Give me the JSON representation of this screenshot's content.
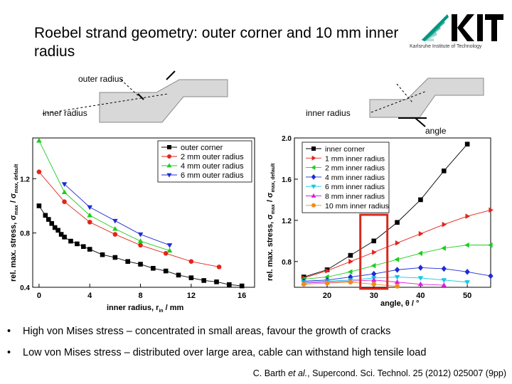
{
  "slide": {
    "title": "Roebel strand geometry: outer corner and 10 mm inner radius",
    "logo": {
      "text": "KIT",
      "subtitle": "Karlsruhe Institute of Technology",
      "color": "#009682"
    },
    "bullets": [
      "High von Mises stress – concentrated in small areas, favour the growth of cracks",
      "Low von Mises stress – distributed over large area, cable can withstand high tensile load"
    ],
    "bullet_symbol": "•",
    "citation": {
      "author": "C. Barth",
      "etal": "et al.",
      "rest": ", Supercond. Sci. Technol. 25 (2012) 025007 (9pp)"
    }
  },
  "diagram_left": {
    "label_outer": "outer radius",
    "label_inner": "inner radius"
  },
  "diagram_right": {
    "label_inner": "inner radius",
    "label_angle": "angle"
  },
  "highlight_color": "#d42a1e",
  "chart_data": [
    {
      "type": "line",
      "xlabel": "inner radius, r_in / mm",
      "ylabel": "rel. max. stress, σ_max / σ_max, default",
      "xlim": [
        -0.5,
        17
      ],
      "ylim": [
        0.4,
        1.5
      ],
      "xticks": [
        0,
        4,
        8,
        12,
        16
      ],
      "yticks": [
        0.4,
        0.8,
        1.2
      ],
      "legend": "top-right",
      "series": [
        {
          "name": "outer corner",
          "color": "#000000",
          "marker": "square",
          "x": [
            0,
            0.5,
            0.75,
            1,
            1.25,
            1.5,
            1.75,
            2,
            2.5,
            3,
            3.5,
            4,
            5,
            6,
            7,
            8,
            9,
            10,
            11,
            12,
            13,
            14,
            15,
            16
          ],
          "y": [
            1.0,
            0.93,
            0.9,
            0.87,
            0.84,
            0.82,
            0.79,
            0.77,
            0.74,
            0.72,
            0.7,
            0.68,
            0.64,
            0.62,
            0.59,
            0.57,
            0.54,
            0.52,
            0.49,
            0.47,
            0.45,
            0.44,
            0.42,
            0.41
          ]
        },
        {
          "name": "2 mm outer radius",
          "color": "#e3241b",
          "marker": "circle",
          "x": [
            0,
            2,
            4,
            6,
            8,
            10,
            12,
            14.2
          ],
          "y": [
            1.25,
            1.03,
            0.88,
            0.79,
            0.71,
            0.65,
            0.59,
            0.55
          ]
        },
        {
          "name": "4 mm outer radius",
          "color": "#1fcc1f",
          "marker": "triangle-up",
          "x": [
            0,
            2,
            4,
            6,
            8,
            10.3
          ],
          "y": [
            1.48,
            1.1,
            0.93,
            0.83,
            0.74,
            0.67
          ]
        },
        {
          "name": "6 mm outer radius",
          "color": "#1e2bd6",
          "marker": "triangle-down",
          "x": [
            2,
            4,
            6,
            8,
            10.3
          ],
          "y": [
            1.16,
            0.99,
            0.89,
            0.79,
            0.71
          ]
        }
      ]
    },
    {
      "type": "line",
      "xlabel": "angle, θ / °",
      "ylabel": "rel. max. stress, σ_max / σ_max, default",
      "xlim": [
        13,
        55
      ],
      "ylim": [
        0.55,
        2.0
      ],
      "xticks": [
        20,
        30,
        40,
        50
      ],
      "yticks": [
        0.8,
        1.2,
        1.6,
        2.0
      ],
      "legend": "top-left",
      "series": [
        {
          "name": "inner corner",
          "color": "#000000",
          "marker": "square",
          "x": [
            15,
            20,
            25,
            30,
            35,
            40,
            45,
            50
          ],
          "y": [
            0.65,
            0.72,
            0.86,
            1.0,
            1.18,
            1.4,
            1.68,
            1.94
          ]
        },
        {
          "name": "1 mm inner radius",
          "color": "#e3241b",
          "marker": "triangle-right",
          "x": [
            15,
            20,
            25,
            30,
            35,
            40,
            45,
            50,
            55
          ],
          "y": [
            0.64,
            0.71,
            0.8,
            0.89,
            0.98,
            1.07,
            1.16,
            1.24,
            1.3
          ]
        },
        {
          "name": "2 mm inner radius",
          "color": "#1fcc1f",
          "marker": "triangle-left",
          "x": [
            15,
            20,
            25,
            30,
            35,
            40,
            45,
            50,
            55
          ],
          "y": [
            0.63,
            0.65,
            0.7,
            0.76,
            0.82,
            0.88,
            0.93,
            0.96,
            0.96
          ]
        },
        {
          "name": "4 mm inner radius",
          "color": "#1e2bd6",
          "marker": "diamond",
          "x": [
            15,
            20,
            25,
            30,
            35,
            40,
            45,
            50,
            55
          ],
          "y": [
            0.61,
            0.62,
            0.65,
            0.68,
            0.72,
            0.74,
            0.73,
            0.7,
            0.66
          ]
        },
        {
          "name": "6 mm inner radius",
          "color": "#10c8e6",
          "marker": "triangle-down",
          "x": [
            15,
            20,
            25,
            30,
            35,
            40,
            45,
            50
          ],
          "y": [
            0.6,
            0.61,
            0.62,
            0.64,
            0.65,
            0.64,
            0.62,
            0.6
          ]
        },
        {
          "name": "8 mm inner radius",
          "color": "#e020d8",
          "marker": "triangle-up",
          "x": [
            15,
            20,
            25,
            30,
            35,
            40,
            45
          ],
          "y": [
            0.59,
            0.6,
            0.61,
            0.62,
            0.6,
            0.58,
            0.57
          ]
        },
        {
          "name": "10 mm inner radius",
          "color": "#f08c1c",
          "marker": "circle",
          "x": [
            15,
            20,
            25,
            30,
            35
          ],
          "y": [
            0.58,
            0.59,
            0.6,
            0.58,
            0.56
          ]
        }
      ],
      "highlight": {
        "x": 30
      }
    }
  ]
}
